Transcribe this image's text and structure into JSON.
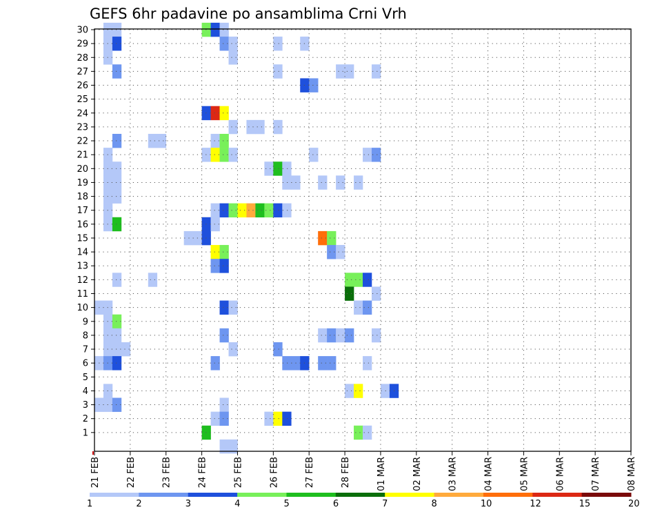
{
  "chart_data": {
    "type": "heatmap",
    "title": "GEFS 6hr padavine po ansamblima Crni Vrh",
    "x_tick_labels": [
      "21 FEB",
      "22 FEB",
      "23 FEB",
      "24 FEB",
      "25 FEB",
      "26 FEB",
      "27 FEB",
      "28 FEB",
      "01 MAR",
      "02 MAR",
      "03 MAR",
      "04 MAR",
      "05 MAR",
      "06 MAR",
      "07 MAR",
      "08 MAR"
    ],
    "x_range_days": [
      0,
      15
    ],
    "y_range": [
      0,
      30
    ],
    "y_tick_labels": [
      "1",
      "2",
      "3",
      "4",
      "5",
      "6",
      "7",
      "8",
      "9",
      "10",
      "11",
      "12",
      "13",
      "14",
      "15",
      "16",
      "17",
      "18",
      "19",
      "20",
      "21",
      "22",
      "23",
      "24",
      "25",
      "26",
      "27",
      "28",
      "29",
      "30"
    ],
    "steps_per_day": 4,
    "grid": true,
    "colorbar": {
      "boundaries": [
        "1",
        "2",
        "3",
        "4",
        "5",
        "6",
        "7",
        "8",
        "10",
        "12",
        "15",
        "20"
      ],
      "colors": [
        "#b4c8f8",
        "#6e96f0",
        "#1e50dc",
        "#78f05a",
        "#1ebe1e",
        "#0a6e0a",
        "#ffff00",
        "#ffaa3c",
        "#ff6e0a",
        "#dc2814",
        "#7a0a0a"
      ]
    },
    "cells": [
      [
        30,
        1,
        "#b4c8f8"
      ],
      [
        30,
        2,
        "#b4c8f8"
      ],
      [
        29,
        1,
        "#b4c8f8"
      ],
      [
        29,
        2,
        "#1e50dc"
      ],
      [
        28,
        1,
        "#b4c8f8"
      ],
      [
        27,
        2,
        "#6e96f0"
      ],
      [
        22,
        2,
        "#6e96f0"
      ],
      [
        21,
        1,
        "#b4c8f8"
      ],
      [
        20,
        1,
        "#b4c8f8"
      ],
      [
        20,
        2,
        "#b4c8f8"
      ],
      [
        19,
        1,
        "#b4c8f8"
      ],
      [
        19,
        2,
        "#b4c8f8"
      ],
      [
        18,
        1,
        "#b4c8f8"
      ],
      [
        18,
        2,
        "#b4c8f8"
      ],
      [
        17,
        1,
        "#b4c8f8"
      ],
      [
        16,
        1,
        "#b4c8f8"
      ],
      [
        16,
        2,
        "#1ebe1e"
      ],
      [
        12,
        2,
        "#b4c8f8"
      ],
      [
        10,
        0,
        "#b4c8f8"
      ],
      [
        10,
        1,
        "#b4c8f8"
      ],
      [
        9,
        1,
        "#b4c8f8"
      ],
      [
        9,
        2,
        "#78f05a"
      ],
      [
        8,
        1,
        "#b4c8f8"
      ],
      [
        8,
        2,
        "#b4c8f8"
      ],
      [
        7,
        1,
        "#b4c8f8"
      ],
      [
        7,
        2,
        "#b4c8f8"
      ],
      [
        7,
        3,
        "#b4c8f8"
      ],
      [
        6,
        0,
        "#b4c8f8"
      ],
      [
        6,
        1,
        "#6e96f0"
      ],
      [
        6,
        2,
        "#1e50dc"
      ],
      [
        4,
        1,
        "#b4c8f8"
      ],
      [
        3,
        0,
        "#b4c8f8"
      ],
      [
        3,
        1,
        "#b4c8f8"
      ],
      [
        3,
        2,
        "#6e96f0"
      ],
      [
        22,
        6,
        "#b4c8f8"
      ],
      [
        22,
        7,
        "#b4c8f8"
      ],
      [
        12,
        6,
        "#b4c8f8"
      ],
      [
        15,
        10,
        "#b4c8f8"
      ],
      [
        15,
        11,
        "#b4c8f8"
      ],
      [
        15,
        12,
        "#1e50dc"
      ],
      [
        30,
        12,
        "#78f05a"
      ],
      [
        30,
        13,
        "#1e50dc"
      ],
      [
        30,
        14,
        "#b4c8f8"
      ],
      [
        29,
        14,
        "#6e96f0"
      ],
      [
        29,
        15,
        "#b4c8f8"
      ],
      [
        28,
        15,
        "#b4c8f8"
      ],
      [
        24,
        12,
        "#1e50dc"
      ],
      [
        24,
        13,
        "#dc2814"
      ],
      [
        24,
        14,
        "#ffff00"
      ],
      [
        23,
        15,
        "#b4c8f8"
      ],
      [
        22,
        13,
        "#b4c8f8"
      ],
      [
        22,
        14,
        "#78f05a"
      ],
      [
        21,
        12,
        "#b4c8f8"
      ],
      [
        21,
        13,
        "#ffff00"
      ],
      [
        21,
        14,
        "#78f05a"
      ],
      [
        21,
        15,
        "#b4c8f8"
      ],
      [
        17,
        13,
        "#b4c8f8"
      ],
      [
        17,
        14,
        "#1e50dc"
      ],
      [
        17,
        15,
        "#78f05a"
      ],
      [
        17,
        16,
        "#ffff00"
      ],
      [
        17,
        17,
        "#ffaa3c"
      ],
      [
        17,
        18,
        "#1ebe1e"
      ],
      [
        17,
        19,
        "#78f05a"
      ],
      [
        17,
        20,
        "#1e50dc"
      ],
      [
        17,
        21,
        "#b4c8f8"
      ],
      [
        16,
        12,
        "#1e50dc"
      ],
      [
        16,
        13,
        "#b4c8f8"
      ],
      [
        14,
        13,
        "#ffff00"
      ],
      [
        14,
        14,
        "#78f05a"
      ],
      [
        13,
        13,
        "#6e96f0"
      ],
      [
        13,
        14,
        "#1e50dc"
      ],
      [
        10,
        14,
        "#1e50dc"
      ],
      [
        10,
        15,
        "#b4c8f8"
      ],
      [
        8,
        14,
        "#6e96f0"
      ],
      [
        7,
        15,
        "#b4c8f8"
      ],
      [
        6,
        13,
        "#6e96f0"
      ],
      [
        3,
        14,
        "#b4c8f8"
      ],
      [
        2,
        13,
        "#b4c8f8"
      ],
      [
        2,
        14,
        "#6e96f0"
      ],
      [
        1,
        12,
        "#1ebe1e"
      ],
      [
        0,
        14,
        "#b4c8f8"
      ],
      [
        0,
        15,
        "#b4c8f8"
      ],
      [
        23,
        17,
        "#b4c8f8"
      ],
      [
        23,
        18,
        "#b4c8f8"
      ],
      [
        27,
        20,
        "#b4c8f8"
      ],
      [
        20,
        19,
        "#b4c8f8"
      ],
      [
        20,
        20,
        "#1ebe1e"
      ],
      [
        20,
        21,
        "#b4c8f8"
      ],
      [
        29,
        20,
        "#b4c8f8"
      ],
      [
        23,
        20,
        "#b4c8f8"
      ],
      [
        7,
        20,
        "#6e96f0"
      ],
      [
        2,
        19,
        "#b4c8f8"
      ],
      [
        2,
        20,
        "#ffff00"
      ],
      [
        2,
        21,
        "#1e50dc"
      ],
      [
        19,
        21,
        "#b4c8f8"
      ],
      [
        19,
        22,
        "#b4c8f8"
      ],
      [
        6,
        21,
        "#6e96f0"
      ],
      [
        6,
        22,
        "#6e96f0"
      ],
      [
        6,
        23,
        "#1e50dc"
      ],
      [
        29,
        23,
        "#b4c8f8"
      ],
      [
        26,
        23,
        "#1e50dc"
      ],
      [
        26,
        24,
        "#6e96f0"
      ],
      [
        21,
        24,
        "#b4c8f8"
      ],
      [
        19,
        25,
        "#b4c8f8"
      ],
      [
        15,
        25,
        "#ff6e0a"
      ],
      [
        15,
        26,
        "#78f05a"
      ],
      [
        19,
        27,
        "#b4c8f8"
      ],
      [
        14,
        26,
        "#6e96f0"
      ],
      [
        14,
        27,
        "#b4c8f8"
      ],
      [
        8,
        25,
        "#b4c8f8"
      ],
      [
        8,
        26,
        "#6e96f0"
      ],
      [
        8,
        27,
        "#b4c8f8"
      ],
      [
        8,
        28,
        "#6e96f0"
      ],
      [
        6,
        25,
        "#6e96f0"
      ],
      [
        6,
        26,
        "#6e96f0"
      ],
      [
        27,
        27,
        "#b4c8f8"
      ],
      [
        27,
        28,
        "#b4c8f8"
      ],
      [
        19,
        29,
        "#b4c8f8"
      ],
      [
        12,
        28,
        "#78f05a"
      ],
      [
        12,
        29,
        "#78f05a"
      ],
      [
        12,
        30,
        "#1e50dc"
      ],
      [
        11,
        28,
        "#0a6e0a"
      ],
      [
        11,
        31,
        "#b4c8f8"
      ],
      [
        10,
        29,
        "#b4c8f8"
      ],
      [
        10,
        30,
        "#6e96f0"
      ],
      [
        4,
        28,
        "#b4c8f8"
      ],
      [
        4,
        29,
        "#ffff00"
      ],
      [
        4,
        32,
        "#b4c8f8"
      ],
      [
        4,
        33,
        "#1e50dc"
      ],
      [
        1,
        29,
        "#78f05a"
      ],
      [
        1,
        30,
        "#b4c8f8"
      ],
      [
        27,
        31,
        "#b4c8f8"
      ],
      [
        21,
        30,
        "#b4c8f8"
      ],
      [
        21,
        31,
        "#6e96f0"
      ],
      [
        8,
        31,
        "#b4c8f8"
      ],
      [
        6,
        30,
        "#b4c8f8"
      ]
    ]
  }
}
